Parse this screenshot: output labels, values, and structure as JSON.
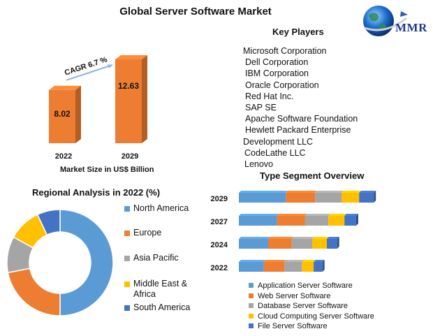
{
  "page_title": "Global Server Software Market",
  "brand": {
    "name": "MMR"
  },
  "key_players": {
    "title": "Key Players",
    "items": [
      "Microsoft Corporation",
      "Dell Corporation",
      "IBM Corporation",
      "Oracle Corporation",
      "Red Hat Inc.",
      "SAP SE",
      "Apache Software Foundation",
      "Hewlett Packard Enterprise",
      "Development LLC",
      "CodeLathe LLC",
      "Lenovo"
    ]
  },
  "colors": {
    "bar_orange": "#ed7d31",
    "blue": "#5b9bd5",
    "orange": "#ed7d31",
    "gray": "#a5a5a5",
    "yellow": "#ffc000",
    "dark_blue": "#4472c4",
    "cagr_arrow": "#8db3e2"
  },
  "chart_data": [
    {
      "type": "bar",
      "xlabel": "Market Size in US$ Billion",
      "categories": [
        "2022",
        "2029"
      ],
      "values": [
        8.02,
        12.63
      ],
      "ylim": [
        0,
        12.63
      ],
      "annotation": "CAGR 6.7 %",
      "style": "3d",
      "color": "#ed7d31"
    },
    {
      "type": "pie",
      "title": "Regional Analysis in 2022 (%)",
      "donut": true,
      "labels": [
        "North America",
        "Europe",
        "Asia Pacific",
        "Middle East & Africa",
        "South America"
      ],
      "values": [
        50,
        22,
        11,
        10,
        7
      ],
      "colors": [
        "#5b9bd5",
        "#ed7d31",
        "#a5a5a5",
        "#ffc000",
        "#4472c4"
      ],
      "legend_position": "right"
    },
    {
      "type": "bar",
      "orientation": "horizontal",
      "stacked": true,
      "title": "Type Segment Overview",
      "categories": [
        "2029",
        "2027",
        "2024",
        "2022"
      ],
      "series": [
        {
          "name": "Application Server Software",
          "values": [
            32,
            26,
            20,
            17
          ],
          "color": "#5b9bd5"
        },
        {
          "name": "Web Server Software",
          "values": [
            20,
            19,
            16,
            14
          ],
          "color": "#ed7d31"
        },
        {
          "name": "Database Server Software",
          "values": [
            18,
            16,
            14,
            12
          ],
          "color": "#a5a5a5"
        },
        {
          "name": "Cloud Computing Server Software",
          "values": [
            12,
            11,
            10,
            8
          ],
          "color": "#ffc000"
        },
        {
          "name": "File Server Software",
          "values": [
            10,
            8,
            7,
            6
          ],
          "color": "#4472c4"
        }
      ],
      "legend_position": "bottom"
    }
  ]
}
